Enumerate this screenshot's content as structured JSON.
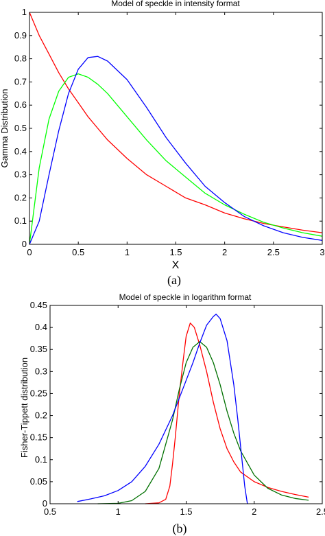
{
  "chart_data": [
    {
      "type": "line",
      "title": "Model of speckle in intensity format",
      "xlabel": "X",
      "ylabel": "Gamma Distribution",
      "caption": "(a)",
      "xlim": [
        0,
        3
      ],
      "ylim": [
        0,
        1
      ],
      "xticks": [
        "0",
        "0.5",
        "1",
        "1.5",
        "2",
        "2.5",
        "3"
      ],
      "yticks": [
        "0",
        "0.1",
        "0.2",
        "0.3",
        "0.4",
        "0.5",
        "0.6",
        "0.7",
        "0.8",
        "0.9",
        "1"
      ],
      "grid": false,
      "series": [
        {
          "color": "#ff0000",
          "x": [
            0,
            0.1,
            0.2,
            0.3,
            0.4,
            0.5,
            0.6,
            0.7,
            0.8,
            1.0,
            1.2,
            1.4,
            1.6,
            1.8,
            2.0,
            2.2,
            2.4,
            2.6,
            2.8,
            3.0
          ],
          "y": [
            1.0,
            0.9,
            0.82,
            0.74,
            0.67,
            0.61,
            0.55,
            0.5,
            0.45,
            0.37,
            0.3,
            0.25,
            0.2,
            0.17,
            0.135,
            0.11,
            0.09,
            0.075,
            0.061,
            0.05
          ]
        },
        {
          "color": "#00ff00",
          "x": [
            0,
            0.1,
            0.2,
            0.3,
            0.4,
            0.5,
            0.6,
            0.7,
            0.8,
            1.0,
            1.2,
            1.4,
            1.6,
            1.8,
            2.0,
            2.2,
            2.4,
            2.6,
            2.8,
            3.0
          ],
          "y": [
            0,
            0.33,
            0.54,
            0.66,
            0.72,
            0.735,
            0.72,
            0.69,
            0.65,
            0.55,
            0.45,
            0.36,
            0.29,
            0.22,
            0.17,
            0.13,
            0.095,
            0.07,
            0.05,
            0.035
          ]
        },
        {
          "color": "#0000ff",
          "x": [
            0,
            0.1,
            0.2,
            0.3,
            0.4,
            0.5,
            0.6,
            0.7,
            0.8,
            1.0,
            1.2,
            1.4,
            1.6,
            1.8,
            2.0,
            2.2,
            2.4,
            2.6,
            2.8,
            3.0
          ],
          "y": [
            0,
            0.1,
            0.3,
            0.49,
            0.65,
            0.755,
            0.805,
            0.81,
            0.79,
            0.71,
            0.59,
            0.46,
            0.35,
            0.25,
            0.18,
            0.12,
            0.08,
            0.05,
            0.03,
            0.017
          ]
        }
      ]
    },
    {
      "type": "line",
      "title": "Model of speckle in logarithm format",
      "xlabel": "",
      "ylabel": "Fisher-Tippett distribution",
      "caption": "(b)",
      "xlim": [
        0.5,
        2.5
      ],
      "ylim": [
        0,
        0.45
      ],
      "xticks": [
        "0.5",
        "1",
        "1.5",
        "2",
        "2.5"
      ],
      "yticks": [
        "0",
        "0.05",
        "0.1",
        "0.15",
        "0.2",
        "0.25",
        "0.3",
        "0.35",
        "0.4",
        "0.45"
      ],
      "grid": false,
      "series": [
        {
          "color": "#ff0000",
          "x": [
            1.2,
            1.3,
            1.35,
            1.38,
            1.4,
            1.42,
            1.45,
            1.48,
            1.5,
            1.53,
            1.56,
            1.6,
            1.65,
            1.7,
            1.75,
            1.8,
            1.85,
            1.9,
            2.0,
            2.1,
            2.2,
            2.3,
            2.4
          ],
          "y": [
            0,
            0.002,
            0.01,
            0.04,
            0.09,
            0.15,
            0.25,
            0.33,
            0.38,
            0.41,
            0.4,
            0.36,
            0.3,
            0.23,
            0.17,
            0.125,
            0.095,
            0.072,
            0.05,
            0.037,
            0.028,
            0.021,
            0.015
          ]
        },
        {
          "color": "#007000",
          "x": [
            0.85,
            1.0,
            1.1,
            1.2,
            1.3,
            1.4,
            1.45,
            1.5,
            1.55,
            1.6,
            1.65,
            1.7,
            1.75,
            1.8,
            1.85,
            1.9,
            2.0,
            2.1,
            2.2,
            2.3,
            2.4
          ],
          "y": [
            0,
            0.001,
            0.007,
            0.028,
            0.08,
            0.19,
            0.26,
            0.32,
            0.355,
            0.368,
            0.355,
            0.32,
            0.27,
            0.21,
            0.16,
            0.12,
            0.065,
            0.035,
            0.02,
            0.012,
            0.008
          ]
        },
        {
          "color": "#0000ff",
          "x": [
            0.7,
            0.8,
            0.9,
            1.0,
            1.1,
            1.2,
            1.3,
            1.4,
            1.5,
            1.55,
            1.6,
            1.65,
            1.7,
            1.72,
            1.75,
            1.8,
            1.85,
            1.88,
            1.9,
            1.93,
            1.95
          ],
          "y": [
            0.005,
            0.011,
            0.018,
            0.03,
            0.05,
            0.085,
            0.135,
            0.2,
            0.28,
            0.32,
            0.365,
            0.405,
            0.425,
            0.43,
            0.42,
            0.37,
            0.27,
            0.19,
            0.13,
            0.04,
            0
          ]
        }
      ]
    }
  ]
}
